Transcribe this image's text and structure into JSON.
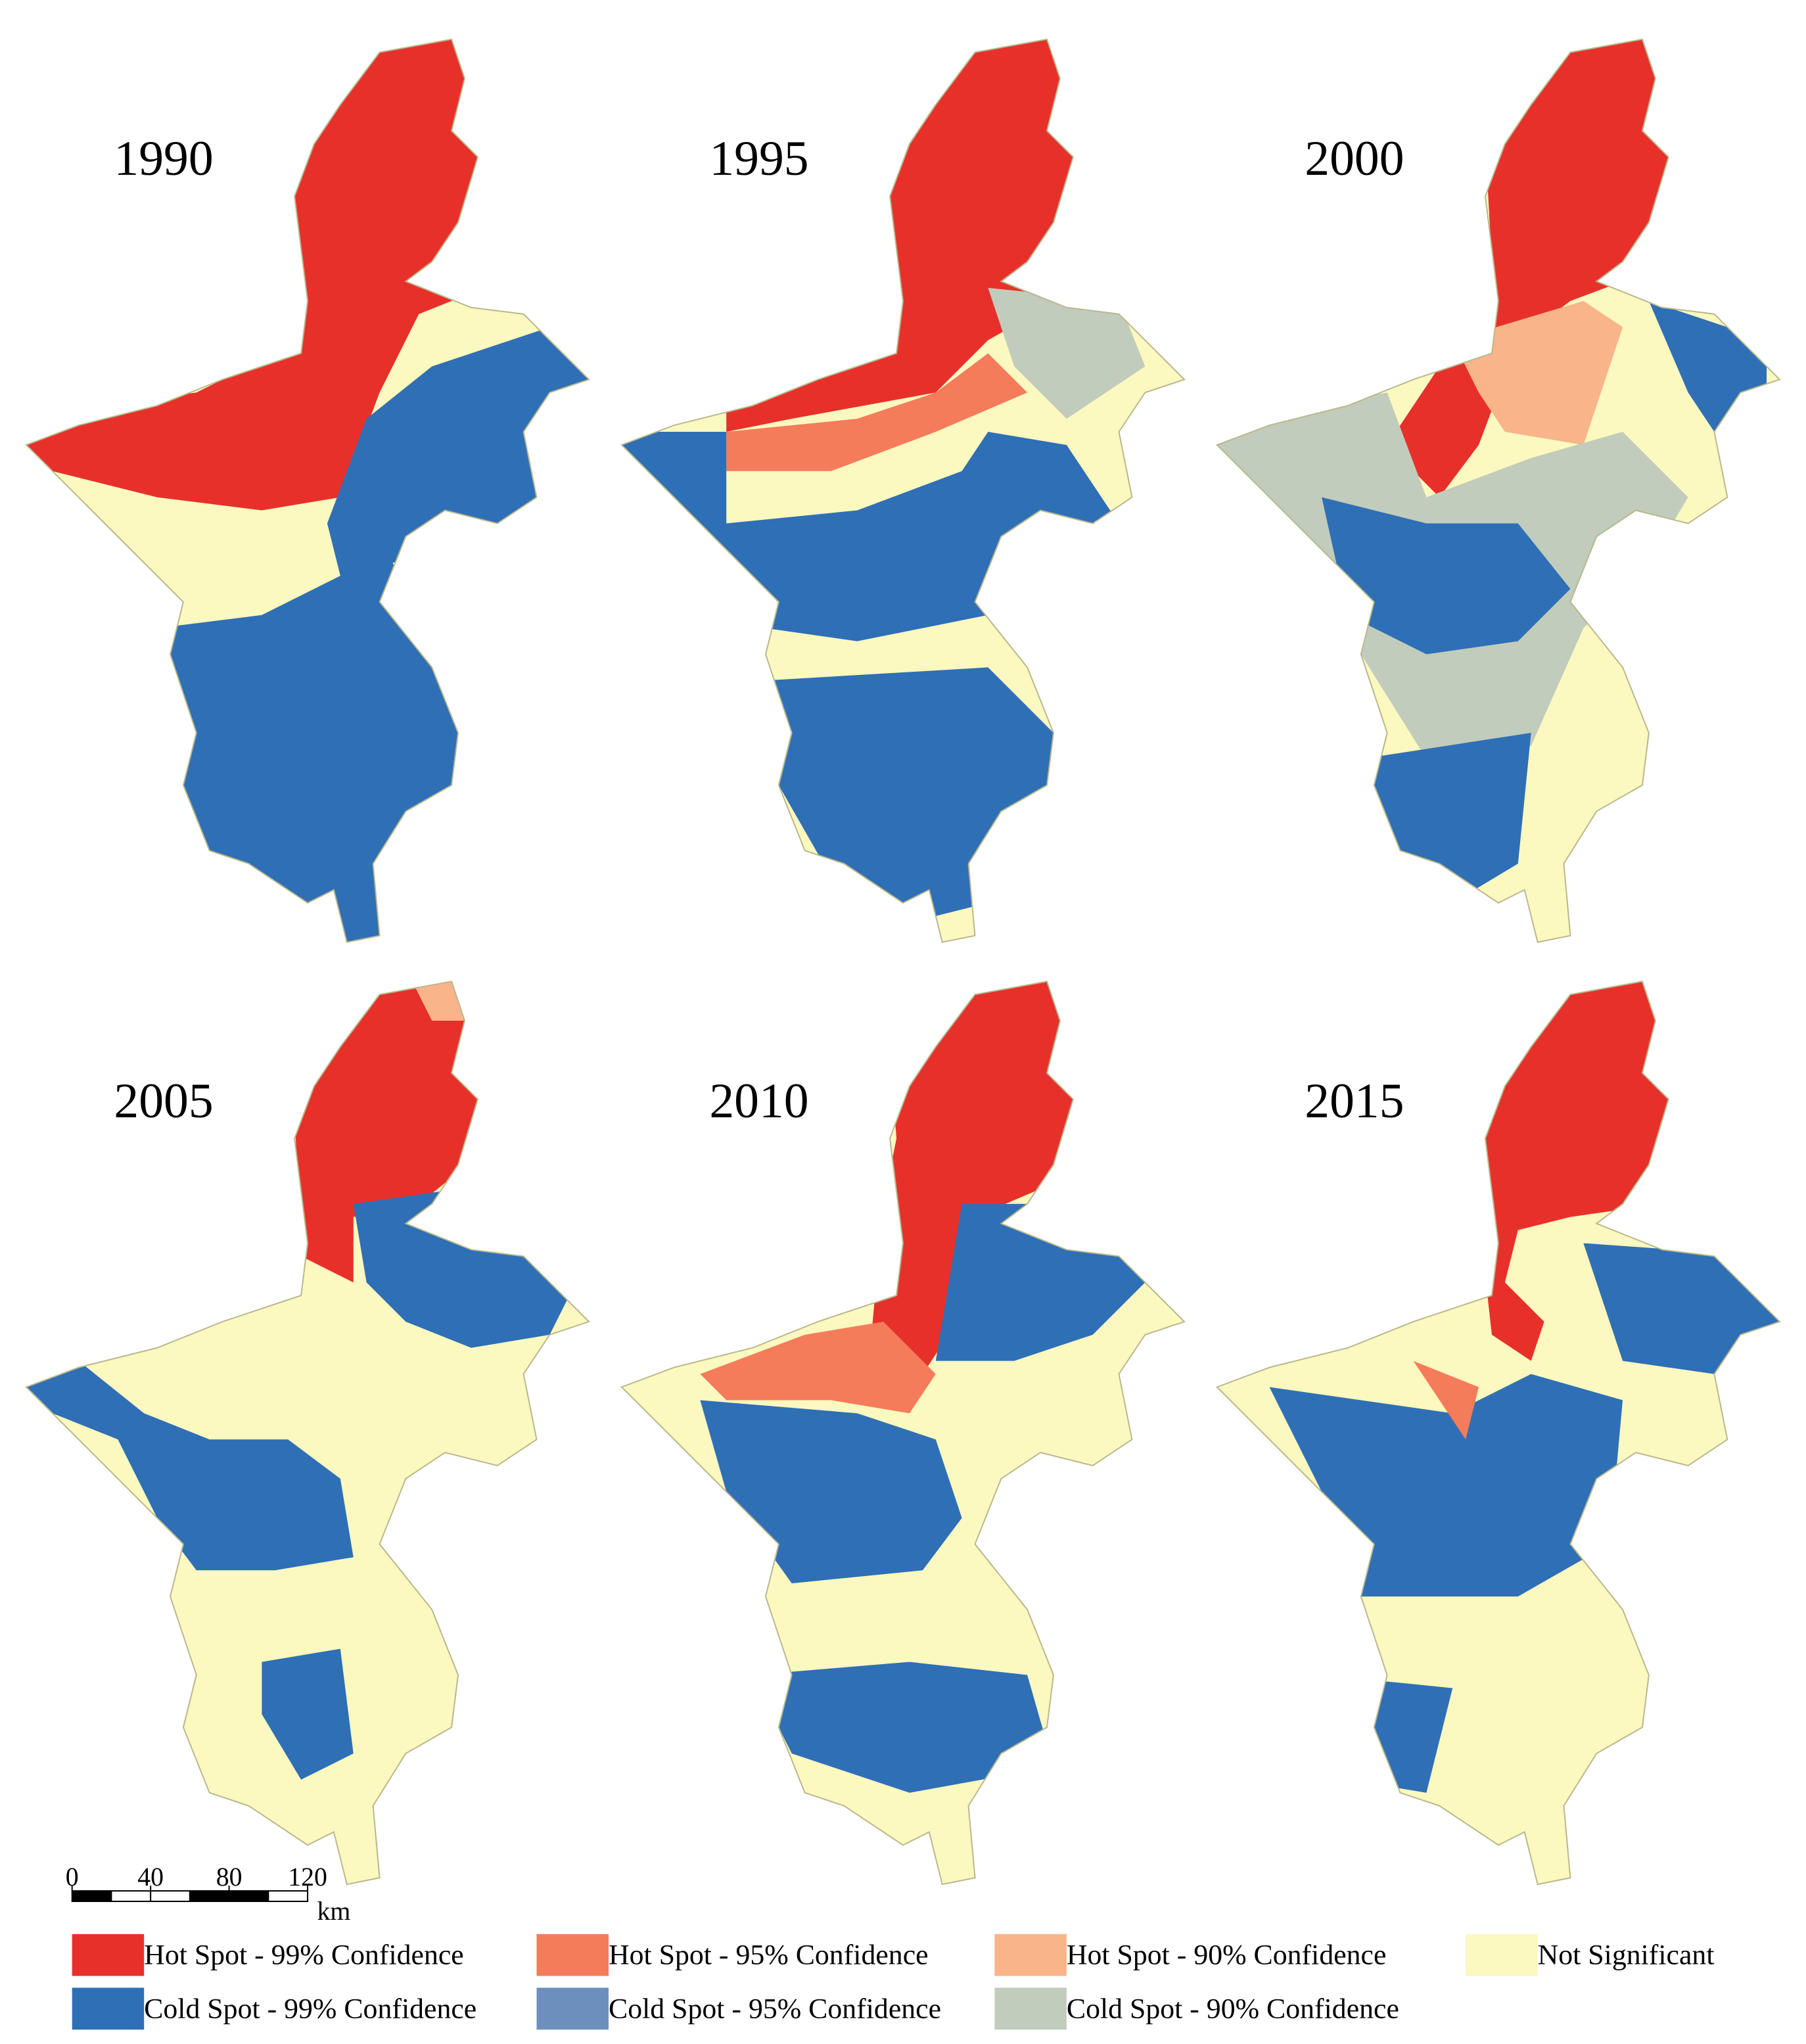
{
  "panels": [
    {
      "year": "1990"
    },
    {
      "year": "1995"
    },
    {
      "year": "2000"
    },
    {
      "year": "2005"
    },
    {
      "year": "2010"
    },
    {
      "year": "2015"
    }
  ],
  "scale_bar": {
    "ticks": [
      0,
      40,
      80,
      120
    ],
    "unit": "km"
  },
  "legend": [
    {
      "label": "Hot Spot - 99% Confidence",
      "color": "#e8302b"
    },
    {
      "label": "Hot Spot - 95% Confidence",
      "color": "#f47c5a"
    },
    {
      "label": "Hot Spot - 90% Confidence",
      "color": "#f9b48a"
    },
    {
      "label": "Not Significant",
      "color": "#fbf8c0"
    },
    {
      "label": "Cold Spot - 99% Confidence",
      "color": "#2f6fb5"
    },
    {
      "label": "Cold Spot - 95% Confidence",
      "color": "#6d8fbe"
    },
    {
      "label": "Cold Spot - 90% Confidence",
      "color": "#c1ccbc"
    }
  ]
}
